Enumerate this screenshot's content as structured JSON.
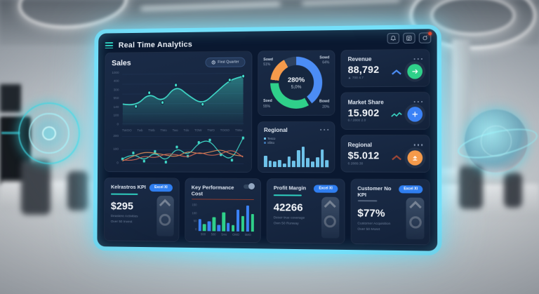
{
  "header": {
    "title": "Real Time Analytics"
  },
  "bezel": {
    "icons": [
      "bell",
      "grid-menu",
      "profile-alert"
    ]
  },
  "sales": {
    "title": "Sales",
    "range_button": "First Quarter"
  },
  "donut": {
    "center_value": "280%",
    "center_sub": "5,0%",
    "labels": {
      "tl": {
        "name": "Sowd",
        "pct": "51%"
      },
      "tr": {
        "name": "Sowd",
        "pct": "64%"
      },
      "bl": {
        "name": "Soed",
        "pct": "55%"
      },
      "br": {
        "name": "Bowd",
        "pct": "20%"
      }
    }
  },
  "regional": {
    "title": "Regional",
    "legend": [
      {
        "label": "Tesco",
        "color": "#6fc3ea"
      },
      {
        "label": "Sfitto",
        "color": "#3a6ea8"
      }
    ]
  },
  "stats": [
    {
      "title": "Revenue",
      "value": "88,792",
      "sub": "▲ 700 4.7",
      "trend": "chevron-up",
      "trend_color": "#4c8df5",
      "icon": "transfer-arrow",
      "icon_bg": "#2fd08a"
    },
    {
      "title": "Market Share",
      "value": "15.902",
      "sub": "6 / 2800 2.0",
      "trend": "zigzag",
      "trend_color": "#39d3c3",
      "icon": "plus",
      "icon_bg": "#3b82f6"
    },
    {
      "title": "Regional",
      "value": "$5.012",
      "sub": "6 2889.30",
      "trend": "chevron-up",
      "trend_color": "#9c4636",
      "icon": "upload-arrow",
      "icon_bg": "#f59a4b"
    }
  ],
  "kpis": [
    {
      "title": "Kelrastros KPI",
      "badge": "Excel XI",
      "value": "$295",
      "sub1": "Deastere Activities",
      "sub2": "Over 50 Invest"
    },
    {
      "title": "Key Performance Cost"
    },
    {
      "title": "Profit Margin",
      "badge": "Excel XI",
      "value": "42266",
      "sub1": "Deser true coverage",
      "sub2": "Own 50 Runway"
    },
    {
      "title": "Customer No KPI",
      "badge": "Excel XI",
      "value": "$77%",
      "sub1": "Customer Acquisition",
      "sub2": "Over 50 Moret"
    }
  ],
  "chart_data": {
    "sales_area": {
      "type": "area",
      "title": "Sales",
      "x": [
        "TWOO",
        "Twb",
        "TWb",
        "TWo",
        "Two",
        "Tdo",
        "TOW",
        "TWO",
        "TOOO",
        "TWw"
      ],
      "values": [
        210,
        185,
        330,
        225,
        410,
        290,
        205,
        330,
        460,
        500
      ],
      "yticks": [
        "1000",
        "400",
        "300",
        "550",
        "140",
        "100",
        "0"
      ],
      "ymax": 520,
      "color": "#3fd8c7",
      "grid": true
    },
    "sales_lines": {
      "type": "line",
      "yticks": [
        "200",
        "100",
        "0"
      ],
      "ymax": 90,
      "series": [
        {
          "name": "series-teal",
          "color": "#3fd8c7",
          "values": [
            15,
            35,
            8,
            40,
            5,
            55,
            25,
            70,
            78,
            30,
            12,
            85
          ]
        },
        {
          "name": "series-orange",
          "color": "#e8925a",
          "values": [
            8,
            25,
            38,
            35,
            28,
            22,
            42,
            32,
            38,
            48,
            30,
            25
          ]
        },
        {
          "name": "series-red",
          "color": "#d96b56",
          "values": [
            12,
            8,
            26,
            18,
            33,
            30,
            20,
            40,
            26,
            32,
            48,
            22
          ]
        }
      ],
      "grid": true
    },
    "quota_donut": {
      "type": "pie",
      "center": "280%",
      "center_sub": "5,0%",
      "arcs": [
        {
          "label": "Sowd 64%",
          "color": "#4c8df5",
          "deg": 143
        },
        {
          "label": "gap",
          "color": "#16283f",
          "deg": 8
        },
        {
          "label": "Soed 55%",
          "color": "#2fd08a",
          "deg": 118
        },
        {
          "label": "gap",
          "color": "#16283f",
          "deg": 8
        },
        {
          "label": "Sowd 51%",
          "color": "#f59a4b",
          "deg": 55
        },
        {
          "label": "Bowd 20%",
          "color": "#2e425f",
          "deg": 28
        }
      ]
    },
    "regional_bars": {
      "type": "bar",
      "values": [
        45,
        25,
        22,
        28,
        12,
        40,
        25,
        65,
        80,
        35,
        22,
        38,
        70,
        28
      ],
      "ymax": 90,
      "color": "#6fc3ea",
      "legend": [
        "Tesco",
        "Sfitto"
      ]
    },
    "kpc_bars": {
      "type": "bar",
      "title": "Key Performance Cost",
      "values": [
        60,
        35,
        48,
        70,
        30,
        95,
        42,
        30,
        108,
        78,
        128,
        88
      ],
      "ymax": 140,
      "colors": [
        "#3b82f6",
        "#2fd08a"
      ],
      "yticks": [
        "150",
        "100",
        "50",
        "0"
      ],
      "xticks": [
        "500",
        "580",
        "5mo",
        "OMO",
        "5MO"
      ]
    }
  }
}
